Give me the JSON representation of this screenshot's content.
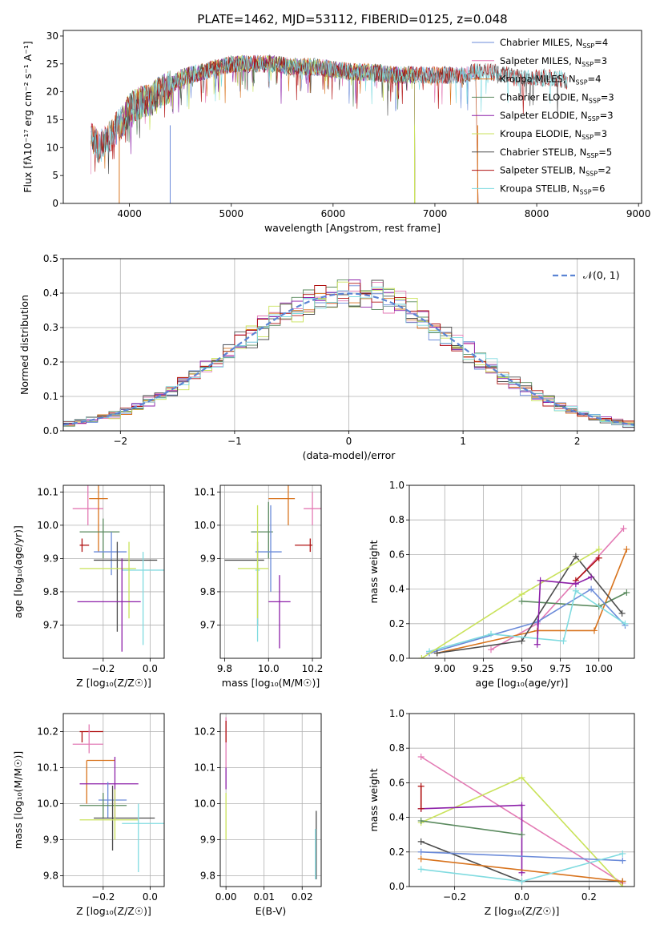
{
  "colors": {
    "cm": "#6b8bd9",
    "sm": "#e37ab4",
    "km": "#d8731d",
    "ce": "#5a8a5e",
    "se": "#8c1fa8",
    "ke": "#c9e25a",
    "cs": "#4d4d4d",
    "ss": "#b01010",
    "ks": "#80dbe0"
  },
  "chart_data": [
    {
      "id": "spectrum",
      "type": "line",
      "title": "PLATE=1462, MJD=53112, FIBERID=0125, z=0.048",
      "xlabel": "wavelength [Angstrom, rest frame]",
      "ylabel": "Flux [fλ10⁻¹⁷ erg cm⁻² s⁻¹ A⁻¹]",
      "xlim": [
        3350,
        9030
      ],
      "ylim": [
        0,
        31
      ],
      "xticks": [
        4000,
        5000,
        6000,
        7000,
        8000,
        9000
      ],
      "yticks": [
        0,
        5,
        10,
        15,
        20,
        25,
        30
      ],
      "legend_position": "top-right",
      "continuum": {
        "x": [
          3620,
          3700,
          3800,
          3900,
          3950,
          4000,
          4100,
          4200,
          4300,
          4400,
          4500,
          4600,
          4700,
          4800,
          4900,
          5000,
          5200,
          5400,
          5600,
          5800,
          6000,
          6200,
          6400,
          6600,
          6800,
          7000,
          7200,
          7400,
          7600,
          7800,
          8000,
          8200,
          8300
        ],
        "y": [
          12,
          10,
          12,
          14,
          15,
          17,
          18,
          18.5,
          20,
          21,
          22.5,
          23,
          23.5,
          24,
          24.5,
          25,
          25,
          25,
          24.5,
          24.5,
          24,
          23.5,
          23.5,
          23,
          23,
          23,
          23,
          23.5,
          23.5,
          22.5,
          22.5,
          22.5,
          22
        ]
      },
      "series": [
        {
          "name": "Chabrier MILES, N",
          "sub": "SSP",
          "value": "=4",
          "color_key": "cm",
          "x_range": [
            3620,
            7400
          ]
        },
        {
          "name": "Salpeter MILES, N",
          "sub": "SSP",
          "value": "=3",
          "color_key": "sm",
          "x_range": [
            3620,
            7400
          ]
        },
        {
          "name": "Kroupa MILES, N",
          "sub": "SSP",
          "value": "=4",
          "color_key": "km",
          "x_range": [
            3620,
            7400
          ]
        },
        {
          "name": "Chabrier ELODIE, N",
          "sub": "SSP",
          "value": "=3",
          "color_key": "ce",
          "x_range": [
            3900,
            6800
          ]
        },
        {
          "name": "Salpeter ELODIE, N",
          "sub": "SSP",
          "value": "=3",
          "color_key": "se",
          "x_range": [
            3900,
            6800
          ]
        },
        {
          "name": "Kroupa ELODIE, N",
          "sub": "SSP",
          "value": "=3",
          "color_key": "ke",
          "x_range": [
            3900,
            6800
          ]
        },
        {
          "name": "Chabrier STELIB, N",
          "sub": "SSP",
          "value": "=5",
          "color_key": "cs",
          "x_range": [
            3620,
            8300
          ]
        },
        {
          "name": "Salpeter STELIB, N",
          "sub": "SSP",
          "value": "=2",
          "color_key": "ss",
          "x_range": [
            3620,
            8300
          ]
        },
        {
          "name": "Kroupa STELIB, N",
          "sub": "SSP",
          "value": "=6",
          "color_key": "ks",
          "x_range": [
            3620,
            8300
          ]
        }
      ]
    },
    {
      "id": "residuals",
      "type": "line",
      "xlabel": "(data-model)/error",
      "ylabel": "Normed distribution",
      "xlim": [
        -2.5,
        2.5
      ],
      "ylim": [
        0,
        0.5
      ],
      "xticks": [
        -2,
        -1,
        0,
        1,
        2
      ],
      "yticks": [
        0.0,
        0.1,
        0.2,
        0.3,
        0.4,
        0.5
      ],
      "grid": true,
      "legend_position": "top-right",
      "reference_curve": {
        "label": "𝒩(0, 1)",
        "mean": 0,
        "sigma": 1,
        "style": "dashed",
        "color": "#5b84d4"
      },
      "histogram": {
        "x_start": -2.5,
        "bin_width": 0.1,
        "bins": 50,
        "series_color_keys": [
          "cm",
          "sm",
          "km",
          "ce",
          "se",
          "ke",
          "cs",
          "ss",
          "ks"
        ]
      }
    },
    {
      "id": "age-vs-Z",
      "type": "scatter",
      "xlabel": "Z [log₁₀(Z/Z☉)]",
      "ylabel": "age  [log₁₀(age/yr)]",
      "xlim": [
        -0.37,
        0.06
      ],
      "ylim": [
        9.6,
        10.12
      ],
      "xticks": [
        -0.2,
        0.0
      ],
      "yticks": [
        9.7,
        9.8,
        9.9,
        10.0,
        10.1
      ],
      "grid": true,
      "points": [
        {
          "color_key": "sm",
          "x": -0.265,
          "y": 10.05,
          "xe": [
            -0.33,
            -0.2
          ],
          "ye": [
            10.0,
            10.12
          ]
        },
        {
          "color_key": "km",
          "x": -0.22,
          "y": 10.08,
          "xe": [
            -0.26,
            -0.18
          ],
          "ye": [
            9.92,
            10.12
          ]
        },
        {
          "color_key": "ce",
          "x": -0.2,
          "y": 9.98,
          "xe": [
            -0.3,
            -0.13
          ],
          "ye": [
            9.9,
            10.02
          ]
        },
        {
          "color_key": "ss",
          "x": -0.29,
          "y": 9.94,
          "xe": [
            -0.3,
            -0.26
          ],
          "ye": [
            9.92,
            9.96
          ]
        },
        {
          "color_key": "cm",
          "x": -0.165,
          "y": 9.92,
          "xe": [
            -0.24,
            -0.1
          ],
          "ye": [
            9.85,
            9.98
          ]
        },
        {
          "color_key": "cs",
          "x": -0.14,
          "y": 9.895,
          "xe": [
            -0.24,
            0.03
          ],
          "ye": [
            9.68,
            9.95
          ]
        },
        {
          "color_key": "ks",
          "x": -0.03,
          "y": 9.865,
          "xe": [
            -0.12,
            0.06
          ],
          "ye": [
            9.64,
            9.92
          ]
        },
        {
          "color_key": "ke",
          "x": -0.09,
          "y": 9.87,
          "xe": [
            -0.3,
            -0.06
          ],
          "ye": [
            9.72,
            9.95
          ]
        },
        {
          "color_key": "se",
          "x": -0.12,
          "y": 9.77,
          "xe": [
            -0.31,
            -0.04
          ],
          "ye": [
            9.62,
            9.9
          ]
        }
      ]
    },
    {
      "id": "age-vs-mass",
      "type": "scatter",
      "xlabel": "mass [log₁₀(M/M☉)]",
      "ylabel": "",
      "xlim": [
        9.78,
        10.24
      ],
      "ylim": [
        9.6,
        10.12
      ],
      "xticks": [
        9.8,
        10.0,
        10.2
      ],
      "yticks": [
        9.7,
        9.8,
        9.9,
        10.0,
        10.1
      ],
      "grid": true,
      "points": [
        {
          "color_key": "sm",
          "x": 10.2,
          "y": 10.05,
          "xe": [
            10.16,
            10.24
          ],
          "ye": [
            10.0,
            10.1
          ]
        },
        {
          "color_key": "km",
          "x": 10.09,
          "y": 10.08,
          "xe": [
            10.0,
            10.12
          ],
          "ye": [
            10.0,
            10.12
          ]
        },
        {
          "color_key": "ce",
          "x": 10.0,
          "y": 9.98,
          "xe": [
            9.92,
            10.02
          ],
          "ye": [
            9.9,
            10.07
          ]
        },
        {
          "color_key": "ss",
          "x": 10.19,
          "y": 9.94,
          "xe": [
            10.12,
            10.2
          ],
          "ye": [
            9.92,
            9.96
          ]
        },
        {
          "color_key": "cm",
          "x": 10.01,
          "y": 9.92,
          "xe": [
            9.94,
            10.06
          ],
          "ye": [
            9.8,
            10.06
          ]
        },
        {
          "color_key": "cs",
          "x": 9.95,
          "y": 9.895,
          "xe": [
            9.8,
            9.98
          ],
          "ye": [
            9.7,
            9.95
          ]
        },
        {
          "color_key": "ks",
          "x": 9.95,
          "y": 9.865,
          "xe": [
            9.94,
            9.96
          ],
          "ye": [
            9.65,
            9.9
          ]
        },
        {
          "color_key": "ke",
          "x": 9.95,
          "y": 9.87,
          "xe": [
            9.86,
            10.0
          ],
          "ye": [
            9.72,
            10.06
          ]
        },
        {
          "color_key": "se",
          "x": 10.05,
          "y": 9.77,
          "xe": [
            10.0,
            10.1
          ],
          "ye": [
            9.63,
            9.85
          ]
        }
      ]
    },
    {
      "id": "mass-weight-vs-age",
      "type": "line",
      "xlabel": "age  [log₁₀(age/yr)]",
      "ylabel": "mass weight",
      "xlim": [
        8.77,
        10.23
      ],
      "ylim": [
        0,
        1.0
      ],
      "xticks": [
        9.0,
        9.25,
        9.5,
        9.75,
        10.0
      ],
      "yticks": [
        0.0,
        0.2,
        0.4,
        0.6,
        0.8,
        1.0
      ],
      "grid": true,
      "series": [
        {
          "color_key": "sm",
          "x": [
            9.3,
            9.6,
            10.16
          ],
          "y": [
            0.05,
            0.2,
            0.75
          ]
        },
        {
          "color_key": "km",
          "x": [
            8.95,
            9.6,
            9.97,
            10.18
          ],
          "y": [
            0.03,
            0.16,
            0.16,
            0.63
          ]
        },
        {
          "color_key": "ce",
          "x": [
            9.5,
            10.0,
            10.18
          ],
          "y": [
            0.33,
            0.3,
            0.38
          ]
        },
        {
          "color_key": "ss",
          "x": [
            9.85,
            10.0
          ],
          "y": [
            0.45,
            0.58
          ]
        },
        {
          "color_key": "cm",
          "x": [
            8.9,
            9.6,
            9.95,
            10.17
          ],
          "y": [
            0.03,
            0.21,
            0.4,
            0.19
          ]
        },
        {
          "color_key": "cs",
          "x": [
            8.95,
            9.5,
            9.85,
            10.15
          ],
          "y": [
            0.03,
            0.1,
            0.59,
            0.26
          ]
        },
        {
          "color_key": "ks",
          "x": [
            8.9,
            9.3,
            9.77,
            9.85,
            10.17
          ],
          "y": [
            0.04,
            0.14,
            0.1,
            0.39,
            0.2
          ]
        },
        {
          "color_key": "ke",
          "x": [
            8.85,
            9.5,
            10.0
          ],
          "y": [
            0.0,
            0.37,
            0.63
          ]
        },
        {
          "color_key": "se",
          "x": [
            9.6,
            9.62,
            9.85,
            9.95
          ],
          "y": [
            0.08,
            0.45,
            0.43,
            0.47
          ]
        }
      ]
    },
    {
      "id": "mass-vs-Z",
      "type": "scatter",
      "xlabel": "Z [log₁₀(Z/Z☉)]",
      "ylabel": "mass [log₁₀(M/M☉)]",
      "xlim": [
        -0.37,
        0.06
      ],
      "ylim": [
        9.77,
        10.25
      ],
      "xticks": [
        -0.2,
        0.0
      ],
      "yticks": [
        9.8,
        9.9,
        10.0,
        10.1,
        10.2
      ],
      "grid": true,
      "points": [
        {
          "color_key": "ss",
          "x": -0.29,
          "y": 10.2,
          "xe": [
            -0.3,
            -0.2
          ],
          "ye": [
            10.17,
            10.2
          ]
        },
        {
          "color_key": "sm",
          "x": -0.26,
          "y": 10.165,
          "xe": [
            -0.33,
            -0.2
          ],
          "ye": [
            10.14,
            10.22
          ]
        },
        {
          "color_key": "km",
          "x": -0.27,
          "y": 10.12,
          "xe": [
            -0.27,
            -0.15
          ],
          "ye": [
            10.0,
            10.12
          ]
        },
        {
          "color_key": "se",
          "x": -0.15,
          "y": 10.055,
          "xe": [
            -0.3,
            -0.05
          ],
          "ye": [
            9.96,
            10.13
          ]
        },
        {
          "color_key": "cm",
          "x": -0.18,
          "y": 10.01,
          "xe": [
            -0.22,
            -0.1
          ],
          "ye": [
            9.96,
            10.06
          ]
        },
        {
          "color_key": "ce",
          "x": -0.2,
          "y": 9.995,
          "xe": [
            -0.3,
            -0.1
          ],
          "ye": [
            9.96,
            10.03
          ]
        },
        {
          "color_key": "cs",
          "x": -0.16,
          "y": 9.96,
          "xe": [
            -0.24,
            0.02
          ],
          "ye": [
            9.87,
            10.05
          ]
        },
        {
          "color_key": "ke",
          "x": -0.15,
          "y": 9.955,
          "xe": [
            -0.3,
            -0.05
          ],
          "ye": [
            9.9,
            10.04
          ]
        },
        {
          "color_key": "ks",
          "x": -0.05,
          "y": 9.945,
          "xe": [
            -0.12,
            0.06
          ],
          "ye": [
            9.81,
            10.0
          ]
        }
      ]
    },
    {
      "id": "mass-vs-ebv",
      "type": "scatter",
      "xlabel": "E(B-V)",
      "ylabel": "",
      "xlim": [
        -0.0015,
        0.025
      ],
      "ylim": [
        9.77,
        10.25
      ],
      "xticks": [
        0.0,
        0.01,
        0.02
      ],
      "yticks": [
        9.8,
        9.9,
        10.0,
        10.1,
        10.2
      ],
      "grid": true,
      "points": [
        {
          "color_key": "sm",
          "x": 0.0,
          "y": 10.17,
          "xe": [
            0.0,
            0.0
          ],
          "ye": [
            10.1,
            10.24
          ]
        },
        {
          "color_key": "ss",
          "x": 0.0,
          "y": 10.2,
          "xe": [
            0.0,
            0.0
          ],
          "ye": [
            10.17,
            10.23
          ]
        },
        {
          "color_key": "se",
          "x": 0.0,
          "y": 10.07,
          "xe": [
            0.0,
            0.0
          ],
          "ye": [
            10.04,
            10.1
          ]
        },
        {
          "color_key": "ke",
          "x": 0.0,
          "y": 9.95,
          "xe": [
            0.0,
            0.0
          ],
          "ye": [
            9.9,
            10.03
          ]
        },
        {
          "color_key": "cs",
          "x": 0.0237,
          "y": 9.9,
          "xe": [
            0.0237,
            0.0237
          ],
          "ye": [
            9.79,
            9.98
          ]
        },
        {
          "color_key": "ks",
          "x": 0.0235,
          "y": 9.85,
          "xe": [
            0.0235,
            0.0235
          ],
          "ye": [
            9.79,
            9.93
          ]
        }
      ]
    },
    {
      "id": "mass-weight-vs-Z",
      "type": "line",
      "xlabel": "Z [log₁₀(Z/Z☉)]",
      "ylabel": "mass weight",
      "xlim": [
        -0.335,
        0.335
      ],
      "ylim": [
        0,
        1.0
      ],
      "xticks": [
        -0.2,
        0.0,
        0.2
      ],
      "yticks": [
        0.0,
        0.2,
        0.4,
        0.6,
        0.8,
        1.0
      ],
      "grid": true,
      "series": [
        {
          "color_key": "sm",
          "x": [
            -0.3,
            0.3
          ],
          "y": [
            0.75,
            0.02
          ]
        },
        {
          "color_key": "ke",
          "x": [
            -0.3,
            0.0,
            0.3
          ],
          "y": [
            0.37,
            0.63,
            0.0
          ]
        },
        {
          "color_key": "se",
          "x": [
            -0.3,
            0.0,
            0.0
          ],
          "y": [
            0.45,
            0.47,
            0.08
          ]
        },
        {
          "color_key": "ce",
          "x": [
            -0.3,
            0.0
          ],
          "y": [
            0.38,
            0.3
          ]
        },
        {
          "color_key": "cs",
          "x": [
            -0.3,
            0.0,
            0.3
          ],
          "y": [
            0.26,
            0.03,
            0.03
          ]
        },
        {
          "color_key": "cm",
          "x": [
            -0.3,
            0.3
          ],
          "y": [
            0.2,
            0.15
          ]
        },
        {
          "color_key": "km",
          "x": [
            -0.3,
            0.3
          ],
          "y": [
            0.16,
            0.03
          ]
        },
        {
          "color_key": "ks",
          "x": [
            -0.3,
            0.0,
            0.3
          ],
          "y": [
            0.1,
            0.03,
            0.19
          ]
        },
        {
          "color_key": "ss",
          "x": [
            -0.3,
            -0.3
          ],
          "y": [
            0.45,
            0.58
          ]
        }
      ]
    }
  ]
}
